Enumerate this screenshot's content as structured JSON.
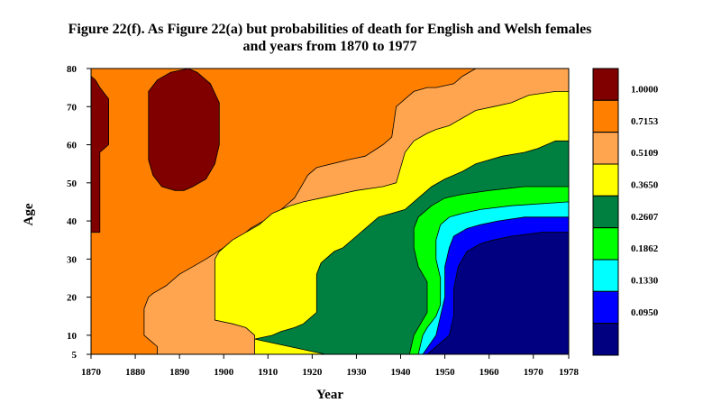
{
  "chart_data": {
    "type": "heatmap",
    "title_lines": [
      "Figure 22(f). As Figure 22(a) but probabilities of death for English and Welsh females",
      "and years from 1870 to 1977"
    ],
    "xlabel": "Year",
    "ylabel": "Age",
    "xlim": [
      1870,
      1978
    ],
    "ylim": [
      5,
      80
    ],
    "x_ticks": [
      1870,
      1880,
      1890,
      1900,
      1910,
      1920,
      1930,
      1940,
      1950,
      1960,
      1970,
      1978
    ],
    "y_ticks": [
      5,
      10,
      20,
      30,
      40,
      50,
      60,
      70,
      80
    ],
    "grid": false,
    "legend_position": "right",
    "legend": [
      {
        "label": "1.0000",
        "color": "#800000"
      },
      {
        "label": "0.7153",
        "color": "#ff8000"
      },
      {
        "label": "0.5109",
        "color": "#ffa54f"
      },
      {
        "label": "0.3650",
        "color": "#ffff00"
      },
      {
        "label": "0.2607",
        "color": "#008040"
      },
      {
        "label": "0.1862",
        "color": "#00ff00"
      },
      {
        "label": "0.1330",
        "color": "#00ffff"
      },
      {
        "label": "0.0950",
        "color": "#0000ff"
      },
      {
        "label": "",
        "color": "#000080"
      }
    ],
    "regions": [
      {
        "level": 1,
        "polygon": [
          [
            1870,
            5
          ],
          [
            1978,
            5
          ],
          [
            1978,
            80
          ],
          [
            1870,
            80
          ]
        ]
      },
      {
        "level": 2,
        "polygon": [
          [
            1885,
            5
          ],
          [
            1978,
            5
          ],
          [
            1978,
            80
          ],
          [
            1957,
            80
          ],
          [
            1954,
            78
          ],
          [
            1952,
            76
          ],
          [
            1948,
            75
          ],
          [
            1946,
            75
          ],
          [
            1943,
            74
          ],
          [
            1941,
            72
          ],
          [
            1939,
            70
          ],
          [
            1938,
            62
          ],
          [
            1936,
            60
          ],
          [
            1932,
            57
          ],
          [
            1928,
            56
          ],
          [
            1921,
            54
          ],
          [
            1919,
            52
          ],
          [
            1918,
            50
          ],
          [
            1916,
            46
          ],
          [
            1914,
            44
          ],
          [
            1912,
            42
          ],
          [
            1909,
            40
          ],
          [
            1906,
            38
          ],
          [
            1903,
            35
          ],
          [
            1900,
            33
          ],
          [
            1896,
            30
          ],
          [
            1893,
            28
          ],
          [
            1890,
            26
          ],
          [
            1887,
            23
          ],
          [
            1884,
            21
          ],
          [
            1883,
            20
          ],
          [
            1882,
            17
          ],
          [
            1882,
            10
          ],
          [
            1885,
            7
          ]
        ]
      },
      {
        "level": 3,
        "polygon": [
          [
            1907,
            5
          ],
          [
            1978,
            5
          ],
          [
            1978,
            74
          ],
          [
            1975,
            74
          ],
          [
            1969,
            73
          ],
          [
            1965,
            71
          ],
          [
            1961,
            70
          ],
          [
            1957,
            69
          ],
          [
            1954,
            67
          ],
          [
            1951,
            65
          ],
          [
            1948,
            64
          ],
          [
            1946,
            63
          ],
          [
            1943,
            61
          ],
          [
            1941,
            58
          ],
          [
            1939,
            50
          ],
          [
            1936,
            49
          ],
          [
            1930,
            48
          ],
          [
            1922,
            46
          ],
          [
            1918,
            45
          ],
          [
            1915,
            44
          ],
          [
            1911,
            42
          ],
          [
            1908,
            39
          ],
          [
            1905,
            37
          ],
          [
            1902,
            35
          ],
          [
            1899,
            32
          ],
          [
            1898,
            30
          ],
          [
            1898,
            14
          ],
          [
            1902,
            13
          ],
          [
            1905,
            12
          ],
          [
            1907,
            10
          ]
        ]
      },
      {
        "level": 4,
        "polygon": [
          [
            1923,
            5
          ],
          [
            1978,
            5
          ],
          [
            1978,
            61
          ],
          [
            1975,
            61
          ],
          [
            1971,
            59
          ],
          [
            1968,
            58
          ],
          [
            1963,
            57
          ],
          [
            1960,
            56
          ],
          [
            1957,
            55
          ],
          [
            1954,
            53
          ],
          [
            1950,
            51
          ],
          [
            1947,
            49
          ],
          [
            1944,
            46
          ],
          [
            1941,
            43
          ],
          [
            1938,
            42
          ],
          [
            1935,
            41
          ],
          [
            1933,
            39
          ],
          [
            1930,
            36
          ],
          [
            1927,
            33
          ],
          [
            1925,
            32
          ],
          [
            1922,
            29
          ],
          [
            1921,
            26
          ],
          [
            1921,
            16
          ],
          [
            1918,
            13
          ],
          [
            1916,
            12
          ],
          [
            1913,
            11
          ],
          [
            1911,
            10
          ],
          [
            1907,
            9
          ]
        ]
      },
      {
        "level": 5,
        "polygon": [
          [
            1942,
            5
          ],
          [
            1978,
            5
          ],
          [
            1978,
            49
          ],
          [
            1968,
            49
          ],
          [
            1960,
            48
          ],
          [
            1954,
            47
          ],
          [
            1950,
            46
          ],
          [
            1947,
            44
          ],
          [
            1944,
            41
          ],
          [
            1943,
            38
          ],
          [
            1943,
            33
          ],
          [
            1944,
            28
          ],
          [
            1946,
            24
          ],
          [
            1946,
            16
          ],
          [
            1944,
            12
          ],
          [
            1943,
            10
          ]
        ]
      },
      {
        "level": 6,
        "polygon": [
          [
            1944,
            5
          ],
          [
            1978,
            5
          ],
          [
            1978,
            45
          ],
          [
            1965,
            44
          ],
          [
            1958,
            43
          ],
          [
            1954,
            42
          ],
          [
            1951,
            41
          ],
          [
            1949,
            39
          ],
          [
            1948,
            35
          ],
          [
            1948,
            30
          ],
          [
            1949,
            25
          ],
          [
            1949,
            18
          ],
          [
            1948,
            15
          ],
          [
            1946,
            12
          ],
          [
            1945,
            10
          ]
        ]
      },
      {
        "level": 7,
        "polygon": [
          [
            1945,
            5
          ],
          [
            1978,
            5
          ],
          [
            1978,
            41
          ],
          [
            1968,
            41
          ],
          [
            1962,
            40
          ],
          [
            1958,
            39
          ],
          [
            1955,
            38
          ],
          [
            1952,
            36
          ],
          [
            1951,
            33
          ],
          [
            1950,
            28
          ],
          [
            1950,
            20
          ],
          [
            1949,
            15
          ],
          [
            1948,
            10
          ]
        ]
      },
      {
        "level": 8,
        "polygon": [
          [
            1946,
            5
          ],
          [
            1978,
            5
          ],
          [
            1978,
            37
          ],
          [
            1972,
            37
          ],
          [
            1965,
            36
          ],
          [
            1961,
            35
          ],
          [
            1958,
            34
          ],
          [
            1955,
            32
          ],
          [
            1953,
            28
          ],
          [
            1952,
            22
          ],
          [
            1952,
            15
          ],
          [
            1951,
            10
          ]
        ]
      },
      {
        "level": 0,
        "polygon": [
          [
            1870,
            37
          ],
          [
            1872,
            37
          ],
          [
            1872,
            58
          ],
          [
            1874,
            60
          ],
          [
            1874,
            72
          ],
          [
            1872,
            75
          ],
          [
            1871,
            77
          ],
          [
            1870,
            78
          ]
        ]
      },
      {
        "level": 0,
        "polygon": [
          [
            1883,
            74
          ],
          [
            1885,
            77
          ],
          [
            1888,
            79
          ],
          [
            1892,
            80
          ],
          [
            1894,
            79
          ],
          [
            1897,
            76
          ],
          [
            1899,
            71
          ],
          [
            1899,
            60
          ],
          [
            1898,
            55
          ],
          [
            1896,
            51
          ],
          [
            1893,
            49
          ],
          [
            1891,
            48
          ],
          [
            1889,
            48
          ],
          [
            1886,
            49
          ],
          [
            1884,
            52
          ],
          [
            1883,
            56
          ]
        ]
      }
    ]
  }
}
